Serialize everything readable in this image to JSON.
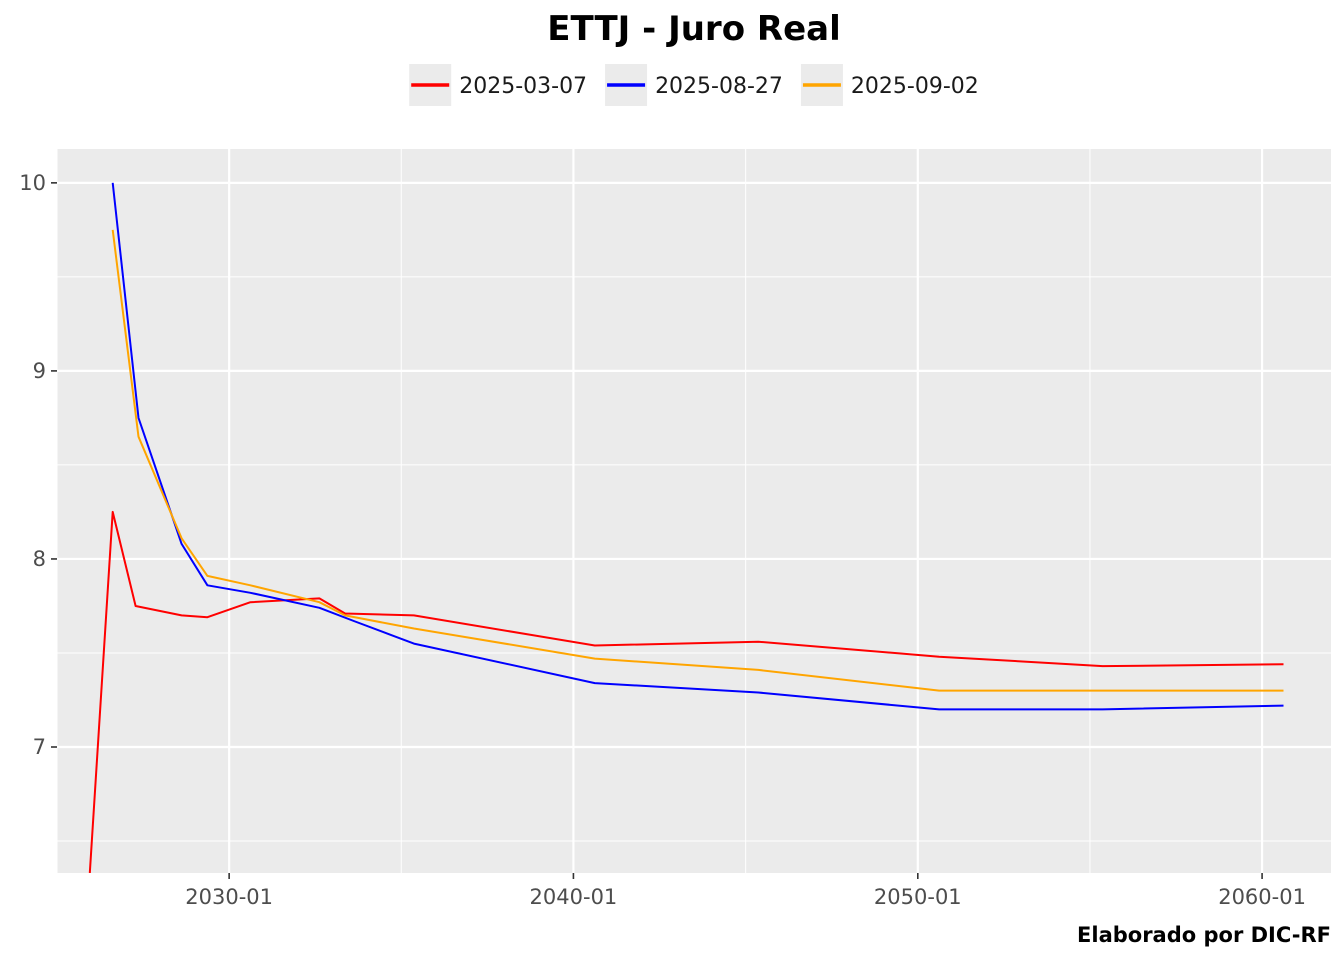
{
  "chart_data": {
    "type": "line",
    "title": "ETTJ - Juro Real",
    "caption": "Elaborado por DIC-RF",
    "xlabel": "",
    "ylabel": "",
    "x_axis_type": "date",
    "xlim": [
      "2025-01-01",
      "2062-01-01"
    ],
    "ylim": [
      6.33,
      10.18
    ],
    "x_ticks": [
      "2030-01-01",
      "2040-01-01",
      "2050-01-01",
      "2060-01-01"
    ],
    "x_tick_labels": [
      "2030-01",
      "2040-01",
      "2050-01",
      "2060-01"
    ],
    "x_minor_ticks": [
      "2025-01-01",
      "2035-01-01",
      "2045-01-01",
      "2055-01-01"
    ],
    "y_ticks": [
      7,
      8,
      9,
      10
    ],
    "y_tick_labels": [
      "7",
      "8",
      "9",
      "10"
    ],
    "y_minor_ticks": [
      6.5,
      7.5,
      8.5,
      9.5
    ],
    "grid": true,
    "legend_position": "top",
    "series": [
      {
        "name": "2025-03-07",
        "color": "#ff0000",
        "x": [
          "2025-12-15",
          "2026-08-15",
          "2027-04-15",
          "2028-08-15",
          "2029-05-15",
          "2030-08-15",
          "2032-08-15",
          "2033-05-15",
          "2035-05-15",
          "2040-08-15",
          "2045-05-15",
          "2050-08-15",
          "2055-05-15",
          "2060-08-15"
        ],
        "y": [
          6.33,
          8.25,
          7.75,
          7.7,
          7.69,
          7.77,
          7.79,
          7.71,
          7.7,
          7.54,
          7.56,
          7.48,
          7.43,
          7.44
        ]
      },
      {
        "name": "2025-08-27",
        "color": "#0000ff",
        "x": [
          "2026-08-15",
          "2027-05-15",
          "2028-08-15",
          "2029-05-15",
          "2030-08-15",
          "2032-08-15",
          "2033-08-15",
          "2035-05-15",
          "2040-08-15",
          "2045-05-15",
          "2050-08-15",
          "2055-05-15",
          "2060-08-15"
        ],
        "y": [
          10.0,
          8.75,
          8.08,
          7.86,
          7.82,
          7.74,
          7.67,
          7.55,
          7.34,
          7.29,
          7.2,
          7.2,
          7.22
        ]
      },
      {
        "name": "2025-09-02",
        "color": "#ffa500",
        "x": [
          "2026-08-15",
          "2027-05-15",
          "2028-08-15",
          "2029-05-15",
          "2030-08-15",
          "2032-08-15",
          "2033-05-15",
          "2035-05-15",
          "2040-08-15",
          "2045-05-15",
          "2050-08-15",
          "2055-05-15",
          "2060-08-15"
        ],
        "y": [
          9.75,
          8.65,
          8.11,
          7.91,
          7.86,
          7.77,
          7.7,
          7.63,
          7.47,
          7.41,
          7.3,
          7.3,
          7.3
        ]
      }
    ]
  }
}
